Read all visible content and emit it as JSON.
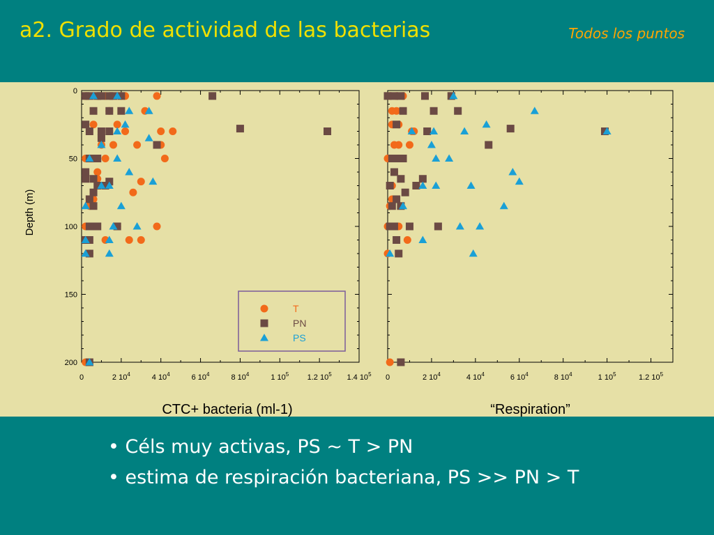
{
  "header": {
    "title": "a2. Grado de actividad de las bacterias",
    "subtitle": "Todos los puntos"
  },
  "bullets": [
    "• Céls muy activas, PS ~ T > PN",
    "• estima de respiración bacteriana, PS >> PN > T"
  ],
  "colors": {
    "T": "#f26a1a",
    "PN": "#6b4a44",
    "PS": "#1aa0d6",
    "legend_border": "#7a5a9a"
  },
  "chart_data": [
    {
      "type": "scatter",
      "xlabel": "CTC+ bacteria (ml-1)",
      "ylabel": "Depth (m)",
      "xlim": [
        0,
        140000
      ],
      "ylim": [
        0,
        200
      ],
      "y_inverted": true,
      "x_ticks": [
        {
          "value": 0,
          "base": "0",
          "sup": ""
        },
        {
          "value": 20000,
          "base": "2 10",
          "sup": "4"
        },
        {
          "value": 40000,
          "base": "4 10",
          "sup": "4"
        },
        {
          "value": 60000,
          "base": "6 10",
          "sup": "4"
        },
        {
          "value": 80000,
          "base": "8 10",
          "sup": "4"
        },
        {
          "value": 100000,
          "base": "1 10",
          "sup": "5"
        },
        {
          "value": 120000,
          "base": "1.2 10",
          "sup": "5"
        },
        {
          "value": 140000,
          "base": "1.4 10",
          "sup": "5"
        }
      ],
      "y_ticks": [
        0,
        50,
        100,
        150,
        200
      ],
      "legend": {
        "placement": "bottom-right",
        "entries": [
          "T",
          "PN",
          "PS"
        ]
      },
      "series": [
        {
          "name": "T",
          "marker": "circle",
          "points": [
            [
              2000,
              4
            ],
            [
              8000,
              4
            ],
            [
              12000,
              4
            ],
            [
              20000,
              4
            ],
            [
              22000,
              4
            ],
            [
              38000,
              4
            ],
            [
              14000,
              15
            ],
            [
              32000,
              15
            ],
            [
              6000,
              25
            ],
            [
              18000,
              25
            ],
            [
              10000,
              30
            ],
            [
              22000,
              30
            ],
            [
              40000,
              30
            ],
            [
              46000,
              30
            ],
            [
              10000,
              40
            ],
            [
              16000,
              40
            ],
            [
              28000,
              40
            ],
            [
              40000,
              40
            ],
            [
              2000,
              50
            ],
            [
              12000,
              50
            ],
            [
              42000,
              50
            ],
            [
              8000,
              60
            ],
            [
              8000,
              65
            ],
            [
              30000,
              67
            ],
            [
              26000,
              75
            ],
            [
              6000,
              80
            ],
            [
              4000,
              85
            ],
            [
              2000,
              100
            ],
            [
              18000,
              100
            ],
            [
              38000,
              100
            ],
            [
              12000,
              110
            ],
            [
              24000,
              110
            ],
            [
              30000,
              110
            ],
            [
              4000,
              120
            ],
            [
              2000,
              200
            ]
          ]
        },
        {
          "name": "PN",
          "marker": "square",
          "points": [
            [
              2000,
              4
            ],
            [
              4000,
              4
            ],
            [
              8000,
              4
            ],
            [
              10000,
              4
            ],
            [
              14000,
              4
            ],
            [
              16000,
              4
            ],
            [
              20000,
              4
            ],
            [
              66000,
              4
            ],
            [
              6000,
              15
            ],
            [
              14000,
              15
            ],
            [
              20000,
              15
            ],
            [
              2000,
              25
            ],
            [
              4000,
              30
            ],
            [
              10000,
              30
            ],
            [
              14000,
              30
            ],
            [
              80000,
              28
            ],
            [
              124000,
              30
            ],
            [
              10000,
              35
            ],
            [
              38000,
              40
            ],
            [
              4000,
              50
            ],
            [
              6000,
              50
            ],
            [
              8000,
              50
            ],
            [
              2000,
              60
            ],
            [
              2000,
              65
            ],
            [
              6000,
              65
            ],
            [
              14000,
              67
            ],
            [
              8000,
              70
            ],
            [
              12000,
              70
            ],
            [
              6000,
              75
            ],
            [
              4000,
              80
            ],
            [
              6000,
              85
            ],
            [
              4000,
              100
            ],
            [
              6000,
              100
            ],
            [
              8000,
              100
            ],
            [
              18000,
              100
            ],
            [
              2000,
              110
            ],
            [
              4000,
              110
            ],
            [
              4000,
              120
            ],
            [
              4000,
              200
            ]
          ]
        },
        {
          "name": "PS",
          "marker": "triangle",
          "points": [
            [
              6000,
              4
            ],
            [
              18000,
              4
            ],
            [
              24000,
              15
            ],
            [
              34000,
              15
            ],
            [
              22000,
              25
            ],
            [
              18000,
              30
            ],
            [
              34000,
              35
            ],
            [
              10000,
              40
            ],
            [
              4000,
              50
            ],
            [
              18000,
              50
            ],
            [
              24000,
              60
            ],
            [
              36000,
              67
            ],
            [
              10000,
              70
            ],
            [
              14000,
              70
            ],
            [
              2000,
              85
            ],
            [
              20000,
              85
            ],
            [
              28000,
              100
            ],
            [
              16000,
              100
            ],
            [
              2000,
              110
            ],
            [
              14000,
              110
            ],
            [
              14000,
              120
            ],
            [
              2000,
              120
            ],
            [
              4000,
              200
            ]
          ]
        }
      ]
    },
    {
      "type": "scatter",
      "xlabel": "“Respiration”",
      "ylabel": "",
      "xlim": [
        0,
        130000
      ],
      "ylim": [
        0,
        200
      ],
      "y_inverted": true,
      "x_ticks": [
        {
          "value": 0,
          "base": "0",
          "sup": ""
        },
        {
          "value": 20000,
          "base": "2 10",
          "sup": "4"
        },
        {
          "value": 40000,
          "base": "4 10",
          "sup": "4"
        },
        {
          "value": 60000,
          "base": "6 10",
          "sup": "4"
        },
        {
          "value": 80000,
          "base": "8 10",
          "sup": "4"
        },
        {
          "value": 100000,
          "base": "1 10",
          "sup": "5"
        },
        {
          "value": 120000,
          "base": "1.2 10",
          "sup": "5"
        }
      ],
      "y_ticks": [
        0,
        50,
        100,
        150,
        200
      ],
      "series": [
        {
          "name": "T",
          "marker": "circle",
          "points": [
            [
              1000,
              4
            ],
            [
              4000,
              4
            ],
            [
              7000,
              4
            ],
            [
              2000,
              15
            ],
            [
              4000,
              15
            ],
            [
              2000,
              25
            ],
            [
              5000,
              25
            ],
            [
              11000,
              30
            ],
            [
              12000,
              30
            ],
            [
              3000,
              40
            ],
            [
              5000,
              40
            ],
            [
              10000,
              40
            ],
            [
              0,
              50
            ],
            [
              3000,
              50
            ],
            [
              6000,
              50
            ],
            [
              3000,
              60
            ],
            [
              2000,
              70
            ],
            [
              2000,
              80
            ],
            [
              1000,
              85
            ],
            [
              0,
              100
            ],
            [
              2000,
              100
            ],
            [
              5000,
              100
            ],
            [
              9000,
              110
            ],
            [
              0,
              120
            ],
            [
              1000,
              200
            ]
          ]
        },
        {
          "name": "PN",
          "marker": "square",
          "points": [
            [
              0,
              4
            ],
            [
              3000,
              4
            ],
            [
              6000,
              4
            ],
            [
              17000,
              4
            ],
            [
              29000,
              4
            ],
            [
              7000,
              15
            ],
            [
              21000,
              15
            ],
            [
              32000,
              15
            ],
            [
              4000,
              25
            ],
            [
              18000,
              30
            ],
            [
              56000,
              28
            ],
            [
              99000,
              30
            ],
            [
              46000,
              40
            ],
            [
              2000,
              50
            ],
            [
              4000,
              50
            ],
            [
              7000,
              50
            ],
            [
              3000,
              60
            ],
            [
              6000,
              65
            ],
            [
              1000,
              70
            ],
            [
              16000,
              65
            ],
            [
              13000,
              70
            ],
            [
              8000,
              75
            ],
            [
              4000,
              80
            ],
            [
              2000,
              85
            ],
            [
              6000,
              85
            ],
            [
              1000,
              100
            ],
            [
              3000,
              100
            ],
            [
              10000,
              100
            ],
            [
              23000,
              100
            ],
            [
              4000,
              110
            ],
            [
              5000,
              120
            ],
            [
              6000,
              200
            ]
          ]
        },
        {
          "name": "PS",
          "marker": "triangle",
          "points": [
            [
              30000,
              4
            ],
            [
              67000,
              15
            ],
            [
              11000,
              30
            ],
            [
              35000,
              30
            ],
            [
              45000,
              25
            ],
            [
              100000,
              30
            ],
            [
              21000,
              30
            ],
            [
              20000,
              40
            ],
            [
              22000,
              50
            ],
            [
              28000,
              50
            ],
            [
              57000,
              60
            ],
            [
              60000,
              67
            ],
            [
              38000,
              70
            ],
            [
              22000,
              70
            ],
            [
              16000,
              70
            ],
            [
              7000,
              85
            ],
            [
              53000,
              85
            ],
            [
              33000,
              100
            ],
            [
              42000,
              100
            ],
            [
              16000,
              110
            ],
            [
              39000,
              120
            ],
            [
              1000,
              120
            ]
          ]
        }
      ]
    }
  ]
}
